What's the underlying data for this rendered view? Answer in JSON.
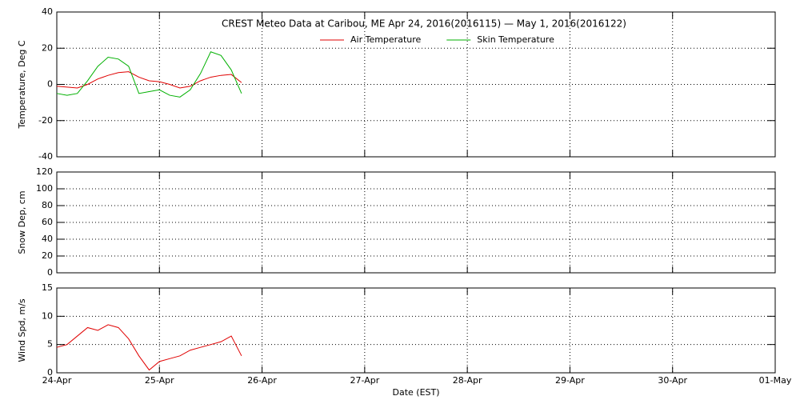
{
  "chart_data": [
    {
      "type": "line",
      "title": "CREST Meteo Data at Caribou, ME   Apr 24, 2016(2016115) — May  1, 2016(2016122)",
      "ylabel": "Temperature, Deg C",
      "legend": "upper center",
      "grid": true,
      "xlim": [
        0,
        7
      ],
      "xticks": [
        0,
        1,
        2,
        3,
        4,
        5,
        6,
        7
      ],
      "ylim": [
        -40,
        40
      ],
      "yticks": [
        -40,
        -20,
        0,
        20,
        40
      ],
      "x": [
        0,
        0.1,
        0.2,
        0.3,
        0.4,
        0.5,
        0.6,
        0.7,
        0.8,
        0.9,
        1.0,
        1.1,
        1.2,
        1.3,
        1.4,
        1.5,
        1.6,
        1.7,
        1.8
      ],
      "series": [
        {
          "name": "Air Temperature",
          "color": "#e00000",
          "values": [
            -1,
            -1.5,
            -2,
            0,
            3,
            5,
            6.5,
            7,
            4,
            2,
            1.5,
            0,
            -2,
            -1,
            2,
            4,
            5,
            5.5,
            1
          ]
        },
        {
          "name": "Skin Temperature",
          "color": "#00b000",
          "values": [
            -5,
            -6,
            -5,
            2,
            10,
            15,
            14,
            10,
            -5,
            -4,
            -3,
            -6,
            -7,
            -3,
            6,
            18,
            16,
            8,
            -5
          ]
        }
      ]
    },
    {
      "type": "line",
      "ylabel": "Snow Dep, cm",
      "grid": true,
      "xlim": [
        0,
        7
      ],
      "xticks": [
        0,
        1,
        2,
        3,
        4,
        5,
        6,
        7
      ],
      "ylim": [
        0,
        120
      ],
      "yticks": [
        0,
        20,
        40,
        60,
        80,
        100,
        120
      ]
    },
    {
      "type": "line",
      "ylabel": "Wind Spd, m/s",
      "xlabel": "Date (EST)",
      "grid": true,
      "xlim": [
        0,
        7
      ],
      "xticks": [
        {
          "value": 0,
          "label": "24-Apr"
        },
        {
          "value": 1,
          "label": "25-Apr"
        },
        {
          "value": 2,
          "label": "26-Apr"
        },
        {
          "value": 3,
          "label": "27-Apr"
        },
        {
          "value": 4,
          "label": "28-Apr"
        },
        {
          "value": 5,
          "label": "29-Apr"
        },
        {
          "value": 6,
          "label": "30-Apr"
        },
        {
          "value": 7,
          "label": "01-May"
        }
      ],
      "ylim": [
        0,
        15
      ],
      "yticks": [
        0,
        5,
        10,
        15
      ],
      "x": [
        0,
        0.1,
        0.2,
        0.3,
        0.4,
        0.5,
        0.6,
        0.7,
        0.8,
        0.9,
        1.0,
        1.1,
        1.2,
        1.3,
        1.4,
        1.5,
        1.6,
        1.7,
        1.8
      ],
      "series": [
        {
          "name": "Wind Speed",
          "color": "#e00000",
          "values": [
            4.5,
            5,
            6.5,
            8,
            7.5,
            8.5,
            8,
            6,
            3,
            0.5,
            2,
            2.5,
            3,
            4,
            4.5,
            5,
            5.5,
            6.5,
            3
          ]
        }
      ]
    }
  ]
}
